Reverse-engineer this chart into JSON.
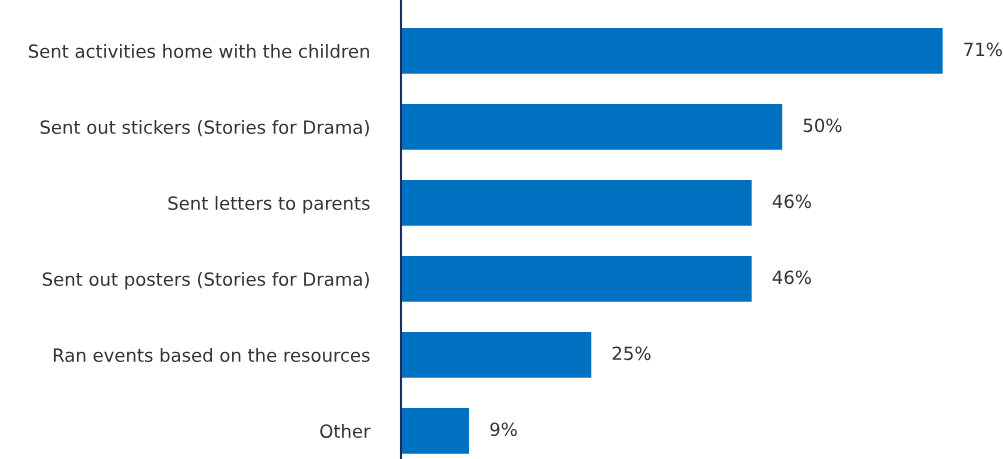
{
  "chart_data": {
    "type": "bar",
    "orientation": "horizontal",
    "categories": [
      "Sent activities home with the children",
      "Sent out stickers (Stories for Drama)",
      "Sent letters to parents",
      "Sent out posters (Stories for Drama)",
      "Ran events based on the resources",
      "Other"
    ],
    "values": [
      71,
      50,
      46,
      46,
      25,
      9
    ],
    "value_labels": [
      "71%",
      "50%",
      "46%",
      "46%",
      "25%",
      "9%"
    ],
    "color": "#0070c0",
    "tick_labels": "y",
    "grid": false,
    "legend": false
  }
}
